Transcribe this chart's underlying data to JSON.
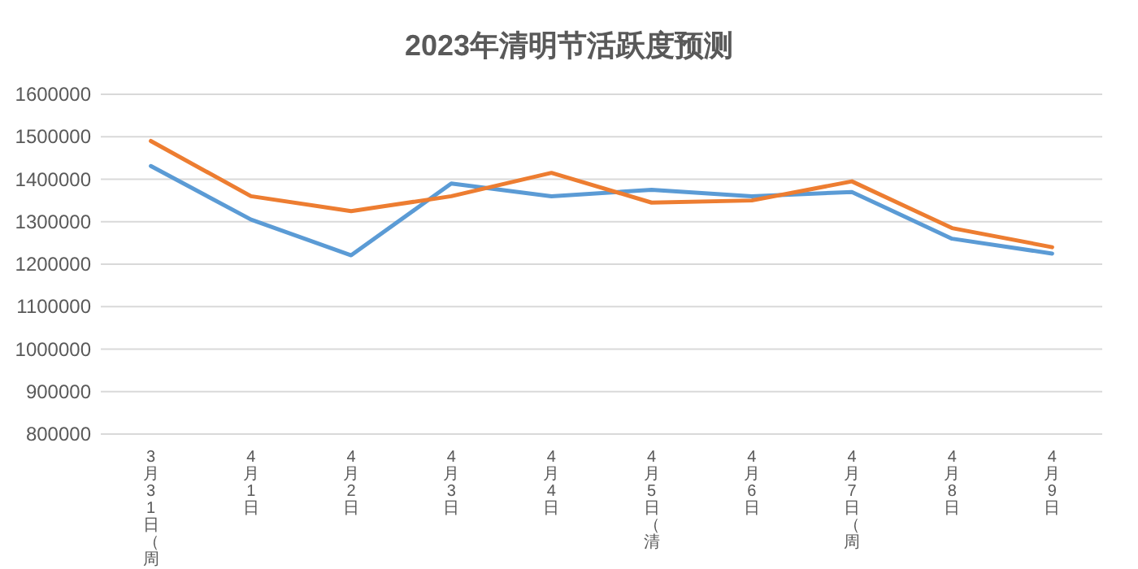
{
  "chart_data": {
    "type": "line",
    "title": "2023年清明节活跃度预测",
    "categories": [
      "3月31日（周",
      "4月1日",
      "4月2日",
      "4月3日",
      "4月4日",
      "4月5日（清",
      "4月6日",
      "4月7日（周",
      "4月8日",
      "4月9日"
    ],
    "series": [
      {
        "color": "#5b9bd5",
        "values": [
          1431000,
          1305000,
          1221000,
          1390000,
          1360000,
          1375000,
          1360000,
          1370000,
          1260000,
          1225000
        ]
      },
      {
        "color": "#ed7d31",
        "values": [
          1490000,
          1360000,
          1325000,
          1360000,
          1415000,
          1345000,
          1350000,
          1395000,
          1285000,
          1240000
        ]
      }
    ],
    "ylim": [
      800000,
      1600000
    ],
    "yticks": [
      800000,
      900000,
      1000000,
      1100000,
      1200000,
      1300000,
      1400000,
      1500000,
      1600000
    ],
    "grid": "y",
    "marker": "none",
    "line_style": "solid"
  }
}
